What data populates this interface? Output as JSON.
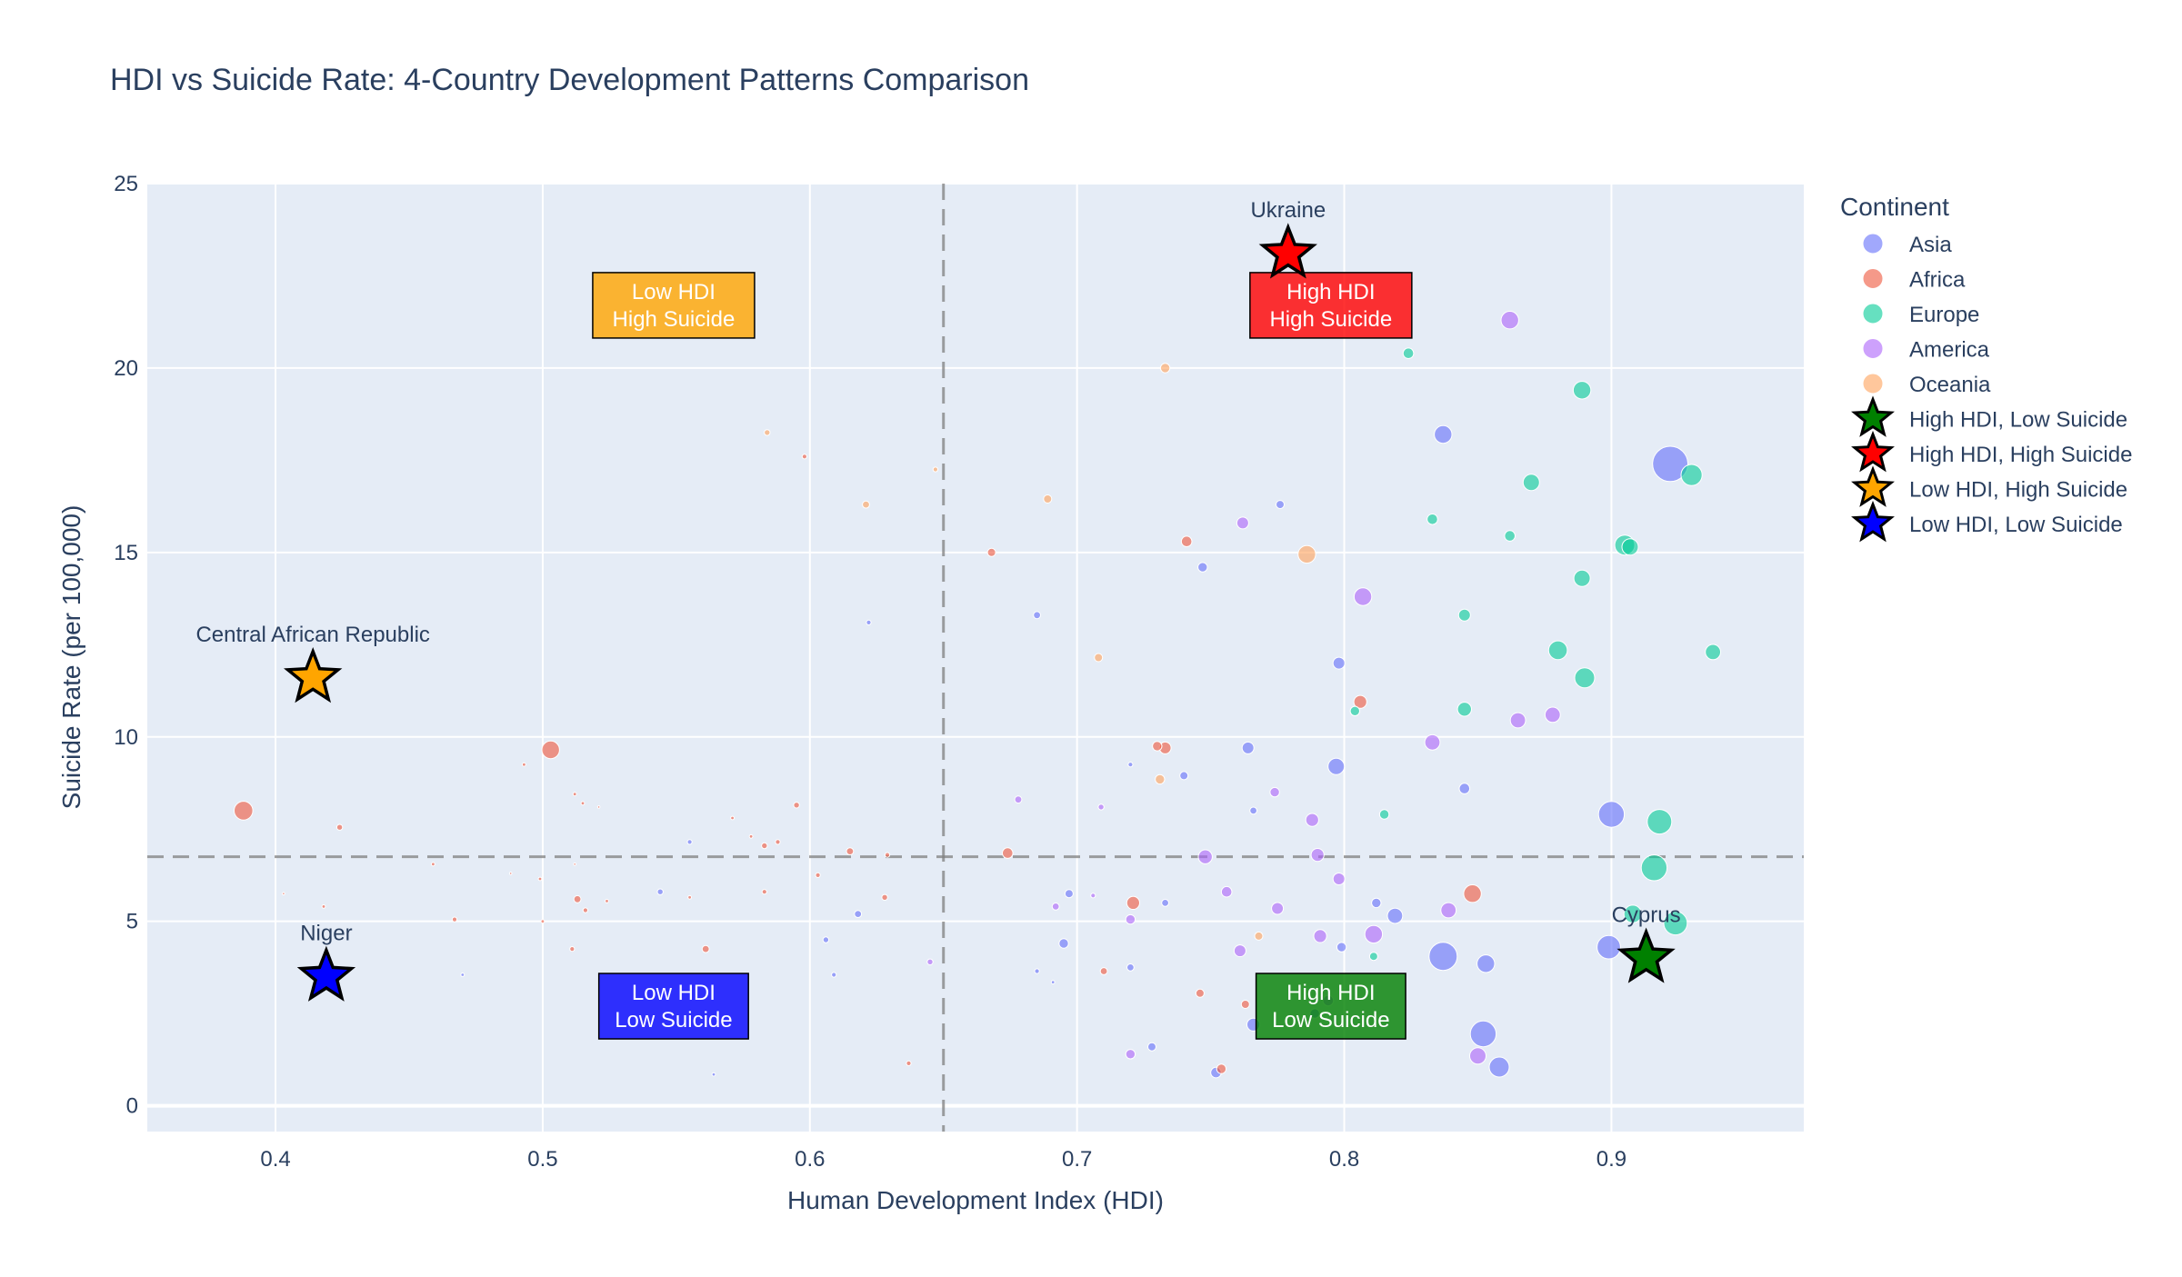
{
  "chart_data": {
    "type": "scatter",
    "title": "HDI vs Suicide Rate: 4-Country Development Patterns Comparison",
    "xlabel": "Human Development Index (HDI)",
    "ylabel": "Suicide Rate (per 100,000)",
    "xlim": [
      0.352,
      0.972
    ],
    "ylim": [
      -0.7,
      25.0
    ],
    "xticks": [
      0.4,
      0.5,
      0.6,
      0.7,
      0.8,
      0.9
    ],
    "xtick_labels": [
      "0.4",
      "0.5",
      "0.6",
      "0.7",
      "0.8",
      "0.9"
    ],
    "yticks": [
      0,
      5,
      10,
      15,
      20,
      25
    ],
    "ytick_labels": [
      "0",
      "5",
      "10",
      "15",
      "20",
      "25"
    ],
    "grid": true,
    "legend_position": "right",
    "legend_title": "Continent",
    "reference_lines": {
      "x": 0.65,
      "y": 6.75
    },
    "series": [
      {
        "name": "Asia",
        "color": "#636efa",
        "points": [
          [
            0.922,
            17.4,
            30
          ],
          [
            0.837,
            18.2,
            15
          ],
          [
            0.776,
            16.3,
            7
          ],
          [
            0.747,
            14.6,
            8
          ],
          [
            0.685,
            13.3,
            6
          ],
          [
            0.622,
            13.1,
            4
          ],
          [
            0.798,
            12.0,
            10
          ],
          [
            0.764,
            9.7,
            10
          ],
          [
            0.797,
            9.2,
            14
          ],
          [
            0.74,
            8.95,
            7
          ],
          [
            0.72,
            9.25,
            4
          ],
          [
            0.845,
            8.6,
            9
          ],
          [
            0.766,
            8.0,
            6
          ],
          [
            0.9,
            7.9,
            22
          ],
          [
            0.555,
            7.15,
            4
          ],
          [
            0.697,
            5.75,
            7
          ],
          [
            0.733,
            5.5,
            6
          ],
          [
            0.812,
            5.5,
            8
          ],
          [
            0.819,
            5.15,
            13
          ],
          [
            0.544,
            5.8,
            5
          ],
          [
            0.618,
            5.2,
            6
          ],
          [
            0.606,
            4.5,
            5
          ],
          [
            0.695,
            4.4,
            8
          ],
          [
            0.899,
            4.3,
            20
          ],
          [
            0.799,
            4.3,
            8
          ],
          [
            0.837,
            4.05,
            24
          ],
          [
            0.853,
            3.85,
            15
          ],
          [
            0.72,
            3.75,
            6
          ],
          [
            0.685,
            3.65,
            4
          ],
          [
            0.609,
            3.55,
            4
          ],
          [
            0.47,
            3.55,
            3
          ],
          [
            0.691,
            3.35,
            3
          ],
          [
            0.789,
            2.5,
            8
          ],
          [
            0.766,
            2.2,
            11
          ],
          [
            0.852,
            1.95,
            22
          ],
          [
            0.728,
            1.6,
            7
          ],
          [
            0.858,
            1.05,
            17
          ],
          [
            0.752,
            0.9,
            9
          ],
          [
            0.564,
            0.85,
            3
          ]
        ]
      },
      {
        "name": "Africa",
        "color": "#ef553b",
        "points": [
          [
            0.388,
            8.0,
            16
          ],
          [
            0.503,
            9.65,
            15
          ],
          [
            0.806,
            10.95,
            11
          ],
          [
            0.741,
            15.3,
            9
          ],
          [
            0.668,
            15.0,
            7
          ],
          [
            0.598,
            17.6,
            4
          ],
          [
            0.733,
            9.7,
            10
          ],
          [
            0.73,
            9.75,
            8
          ],
          [
            0.595,
            8.15,
            5
          ],
          [
            0.571,
            7.8,
            3
          ],
          [
            0.424,
            7.55,
            5
          ],
          [
            0.493,
            9.25,
            3
          ],
          [
            0.512,
            8.45,
            3
          ],
          [
            0.515,
            8.2,
            3
          ],
          [
            0.521,
            8.1,
            2
          ],
          [
            0.578,
            7.3,
            3
          ],
          [
            0.583,
            7.05,
            5
          ],
          [
            0.588,
            7.15,
            4
          ],
          [
            0.615,
            6.9,
            6
          ],
          [
            0.629,
            6.8,
            4
          ],
          [
            0.674,
            6.85,
            9
          ],
          [
            0.459,
            6.55,
            3
          ],
          [
            0.499,
            6.15,
            3
          ],
          [
            0.488,
            6.3,
            2
          ],
          [
            0.512,
            6.55,
            2
          ],
          [
            0.603,
            6.25,
            4
          ],
          [
            0.583,
            5.8,
            4
          ],
          [
            0.628,
            5.65,
            5
          ],
          [
            0.513,
            5.6,
            6
          ],
          [
            0.555,
            5.65,
            3
          ],
          [
            0.524,
            5.55,
            3
          ],
          [
            0.418,
            5.4,
            3
          ],
          [
            0.516,
            5.3,
            4
          ],
          [
            0.721,
            5.5,
            11
          ],
          [
            0.848,
            5.75,
            15
          ],
          [
            0.467,
            5.05,
            4
          ],
          [
            0.5,
            5.0,
            3
          ],
          [
            0.403,
            5.75,
            2
          ],
          [
            0.511,
            4.25,
            4
          ],
          [
            0.561,
            4.25,
            6
          ],
          [
            0.71,
            3.65,
            6
          ],
          [
            0.746,
            3.05,
            7
          ],
          [
            0.763,
            2.75,
            7
          ],
          [
            0.637,
            1.15,
            4
          ],
          [
            0.754,
            1.0,
            8
          ]
        ]
      },
      {
        "name": "Europe",
        "color": "#00cc96",
        "points": [
          [
            0.824,
            20.4,
            9
          ],
          [
            0.889,
            19.4,
            15
          ],
          [
            0.87,
            16.9,
            14
          ],
          [
            0.93,
            17.1,
            18
          ],
          [
            0.833,
            15.9,
            9
          ],
          [
            0.862,
            15.45,
            9
          ],
          [
            0.905,
            15.2,
            17
          ],
          [
            0.907,
            15.15,
            14
          ],
          [
            0.889,
            14.3,
            14
          ],
          [
            0.845,
            13.3,
            10
          ],
          [
            0.88,
            12.35,
            16
          ],
          [
            0.938,
            12.3,
            13
          ],
          [
            0.89,
            11.6,
            17
          ],
          [
            0.845,
            10.75,
            12
          ],
          [
            0.804,
            10.7,
            8
          ],
          [
            0.815,
            7.9,
            8
          ],
          [
            0.918,
            7.7,
            21
          ],
          [
            0.916,
            6.45,
            22
          ],
          [
            0.908,
            5.2,
            15
          ],
          [
            0.924,
            4.95,
            20
          ],
          [
            0.811,
            4.05,
            7
          ]
        ]
      },
      {
        "name": "America",
        "color": "#ab63fa",
        "points": [
          [
            0.862,
            21.3,
            15
          ],
          [
            0.762,
            15.8,
            10
          ],
          [
            0.807,
            13.8,
            15
          ],
          [
            0.865,
            10.45,
            13
          ],
          [
            0.878,
            10.6,
            13
          ],
          [
            0.833,
            9.85,
            13
          ],
          [
            0.678,
            8.3,
            6
          ],
          [
            0.709,
            8.1,
            5
          ],
          [
            0.774,
            8.5,
            8
          ],
          [
            0.788,
            7.75,
            11
          ],
          [
            0.748,
            6.75,
            12
          ],
          [
            0.79,
            6.8,
            11
          ],
          [
            0.798,
            6.15,
            10
          ],
          [
            0.756,
            5.8,
            9
          ],
          [
            0.706,
            5.7,
            4
          ],
          [
            0.692,
            5.4,
            6
          ],
          [
            0.775,
            5.35,
            10
          ],
          [
            0.839,
            5.3,
            13
          ],
          [
            0.72,
            5.05,
            8
          ],
          [
            0.811,
            4.65,
            15
          ],
          [
            0.791,
            4.6,
            11
          ],
          [
            0.761,
            4.2,
            10
          ],
          [
            0.645,
            3.9,
            5
          ],
          [
            0.794,
            2.85,
            9
          ],
          [
            0.85,
            1.35,
            14
          ],
          [
            0.72,
            1.4,
            8
          ]
        ]
      },
      {
        "name": "Oceania",
        "color": "#ffa15a",
        "points": [
          [
            0.733,
            20.0,
            8
          ],
          [
            0.584,
            18.25,
            5
          ],
          [
            0.647,
            17.25,
            4
          ],
          [
            0.689,
            16.45,
            7
          ],
          [
            0.621,
            16.3,
            6
          ],
          [
            0.786,
            14.95,
            15
          ],
          [
            0.708,
            12.15,
            7
          ],
          [
            0.731,
            8.85,
            8
          ],
          [
            0.768,
            4.6,
            7
          ]
        ]
      }
    ],
    "highlights": [
      {
        "name": "High HDI, Low Suicide",
        "country": "Cyprus",
        "x": 0.913,
        "y": 4.0,
        "color": "#008000"
      },
      {
        "name": "High HDI, High Suicide",
        "country": "Ukraine",
        "x": 0.779,
        "y": 23.1,
        "color": "#ff0000"
      },
      {
        "name": "Low HDI, High Suicide",
        "country": "Central African Republic",
        "x": 0.414,
        "y": 11.6,
        "color": "#ffa500"
      },
      {
        "name": "Low HDI, Low Suicide",
        "country": "Niger",
        "x": 0.419,
        "y": 3.5,
        "color": "#0000ff"
      }
    ],
    "quadrant_labels": [
      {
        "lines": [
          "Low HDI",
          "High Suicide"
        ],
        "x": 0.549,
        "y": 21.7,
        "color": "#ffa500"
      },
      {
        "lines": [
          "High HDI",
          "High Suicide"
        ],
        "x": 0.795,
        "y": 21.7,
        "color": "#ff0000"
      },
      {
        "lines": [
          "Low HDI",
          "Low Suicide"
        ],
        "x": 0.549,
        "y": 2.7,
        "color": "#0000ff"
      },
      {
        "lines": [
          "High HDI",
          "Low Suicide"
        ],
        "x": 0.795,
        "y": 2.7,
        "color": "#008000"
      }
    ]
  }
}
